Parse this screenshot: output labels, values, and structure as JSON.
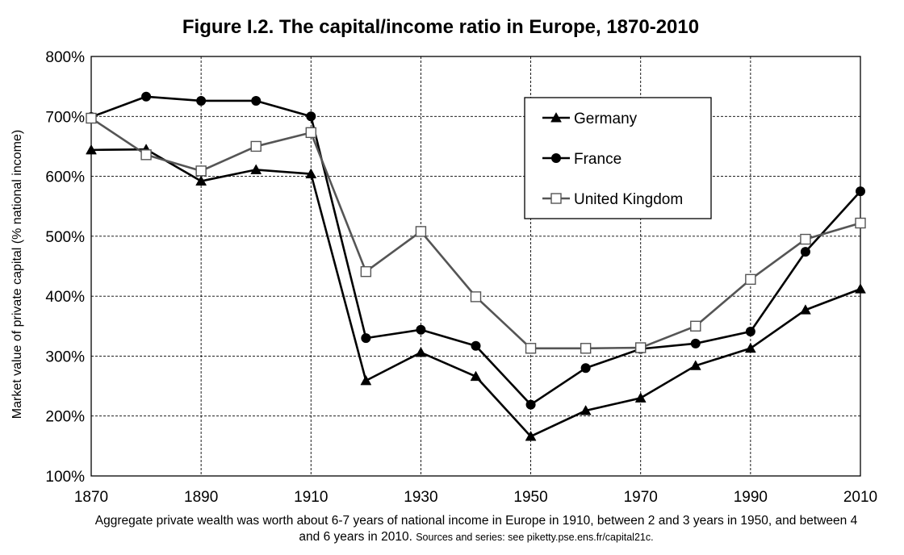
{
  "chart_data": {
    "type": "line",
    "title": "Figure I.2. The capital/income ratio in Europe, 1870-2010",
    "ylabel": "Market value of private capital (% national income)",
    "xlabel": "",
    "x_ticks": [
      "1870",
      "1890",
      "1910",
      "1930",
      "1950",
      "1970",
      "1990",
      "2010"
    ],
    "y_ticks": [
      "100%",
      "200%",
      "300%",
      "400%",
      "500%",
      "600%",
      "700%",
      "800%"
    ],
    "xlim": [
      1870,
      2010
    ],
    "ylim": [
      100,
      800
    ],
    "grid": true,
    "legend_position": "top-right",
    "series": [
      {
        "name": "Germany",
        "marker": "triangle",
        "color": "#000000",
        "points": [
          [
            1870,
            644
          ],
          [
            1880,
            645
          ],
          [
            1890,
            592
          ],
          [
            1900,
            611
          ],
          [
            1910,
            604
          ],
          [
            1920,
            259
          ],
          [
            1930,
            306
          ],
          [
            1940,
            266
          ],
          [
            1950,
            166
          ],
          [
            1960,
            209
          ],
          [
            1970,
            230
          ],
          [
            1980,
            284
          ],
          [
            1990,
            313
          ],
          [
            2000,
            377
          ],
          [
            2010,
            412
          ]
        ]
      },
      {
        "name": "France",
        "marker": "circle",
        "color": "#000000",
        "points": [
          [
            1870,
            699
          ],
          [
            1880,
            733
          ],
          [
            1890,
            726
          ],
          [
            1900,
            726
          ],
          [
            1910,
            700
          ],
          [
            1920,
            330
          ],
          [
            1930,
            344
          ],
          [
            1940,
            317
          ],
          [
            1950,
            219
          ],
          [
            1960,
            280
          ],
          [
            1970,
            312
          ],
          [
            1980,
            321
          ],
          [
            1990,
            341
          ],
          [
            2000,
            474
          ],
          [
            2010,
            575
          ]
        ]
      },
      {
        "name": "United Kingdom",
        "marker": "square",
        "color": "#555555",
        "points": [
          [
            1870,
            697
          ],
          [
            1880,
            636
          ],
          [
            1890,
            609
          ],
          [
            1900,
            650
          ],
          [
            1910,
            673
          ],
          [
            1920,
            441
          ],
          [
            1930,
            508
          ],
          [
            1940,
            399
          ],
          [
            1950,
            313
          ],
          [
            1960,
            313
          ],
          [
            1970,
            314
          ],
          [
            1980,
            350
          ],
          [
            1990,
            428
          ],
          [
            2000,
            495
          ],
          [
            2010,
            522
          ]
        ]
      }
    ]
  },
  "caption": {
    "main": "Aggregate private wealth was worth about 6-7 years of national income in Europe in 1910, between 2 and 3 years in 1950, and between 4 and 6 years in 2010.",
    "sources": "Sources and series: see piketty.pse.ens.fr/capital21c."
  }
}
